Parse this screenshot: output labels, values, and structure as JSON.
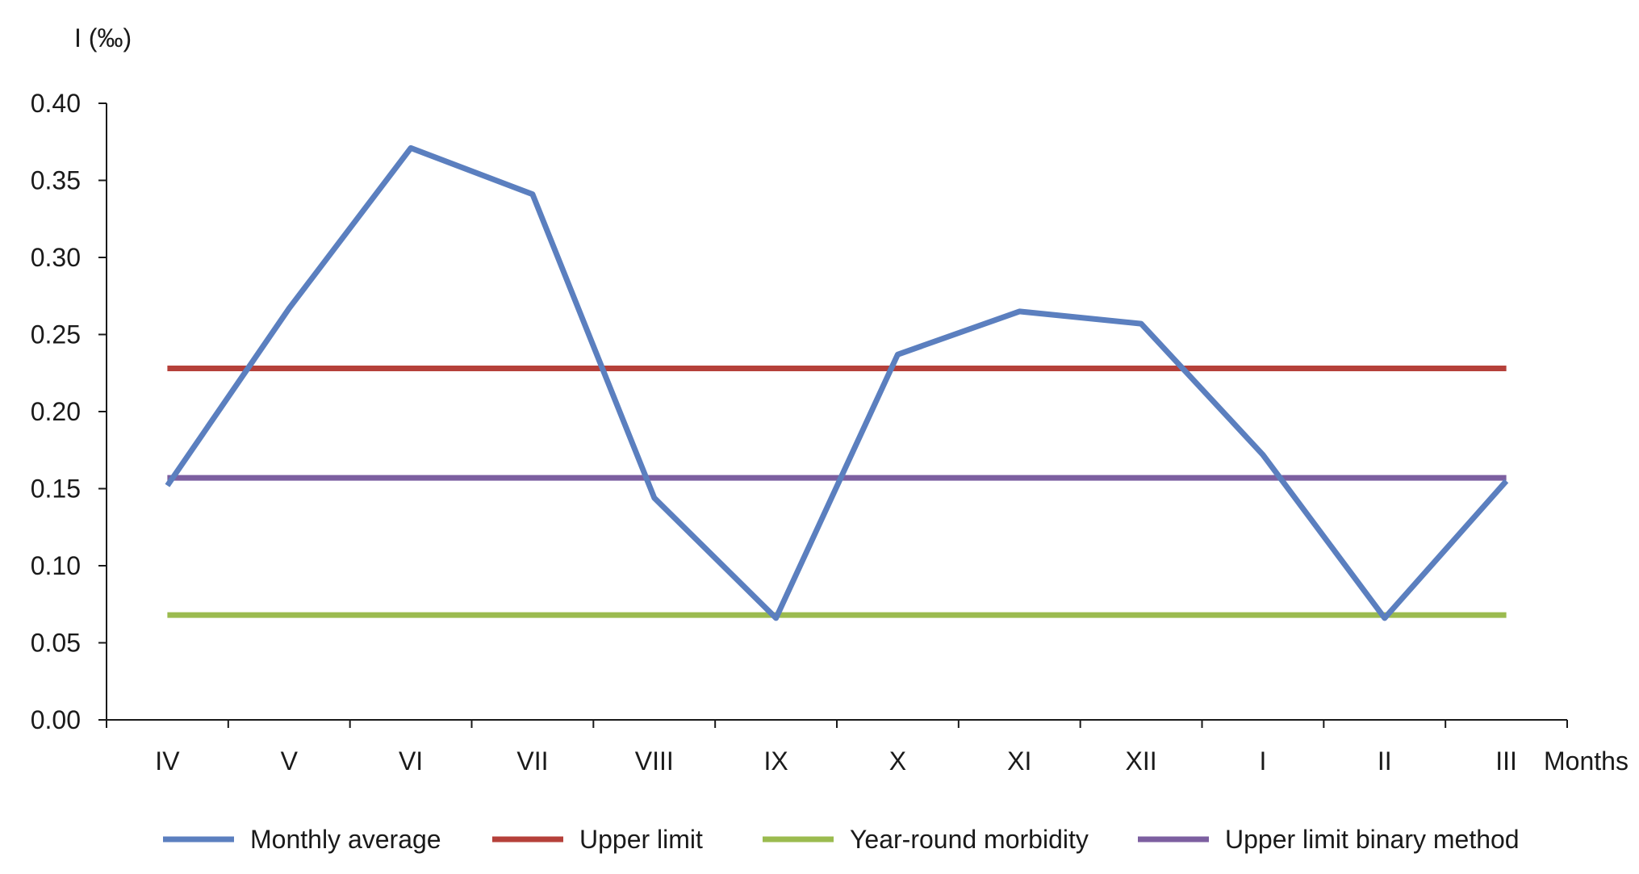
{
  "chart_data": {
    "type": "line",
    "title": "",
    "ylabel": "I (‰)",
    "xlabel": "Months",
    "categories": [
      "IV",
      "V",
      "VI",
      "VII",
      "VIII",
      "IX",
      "X",
      "XI",
      "XII",
      "I",
      "II",
      "III"
    ],
    "ylim": [
      0,
      0.4
    ],
    "yticks": [
      "0.00",
      "0.05",
      "0.10",
      "0.15",
      "0.20",
      "0.25",
      "0.30",
      "0.35",
      "0.40"
    ],
    "grid": false,
    "legend_position": "bottom",
    "series": [
      {
        "name": "Monthly average",
        "color": "#5b7fbf",
        "values": [
          0.152,
          0.267,
          0.371,
          0.341,
          0.144,
          0.066,
          0.237,
          0.265,
          0.257,
          0.172,
          0.066,
          0.155
        ]
      },
      {
        "name": "Upper limit",
        "color": "#b5403a",
        "values": [
          0.228,
          0.228,
          0.228,
          0.228,
          0.228,
          0.228,
          0.228,
          0.228,
          0.228,
          0.228,
          0.228,
          0.228
        ]
      },
      {
        "name": "Year-round morbidity",
        "color": "#9bbb4f",
        "values": [
          0.068,
          0.068,
          0.068,
          0.068,
          0.068,
          0.068,
          0.068,
          0.068,
          0.068,
          0.068,
          0.068,
          0.068
        ]
      },
      {
        "name": "Upper limit binary method",
        "color": "#7c5fa0",
        "values": [
          0.157,
          0.157,
          0.157,
          0.157,
          0.157,
          0.157,
          0.157,
          0.157,
          0.157,
          0.157,
          0.157,
          0.157
        ]
      }
    ]
  }
}
